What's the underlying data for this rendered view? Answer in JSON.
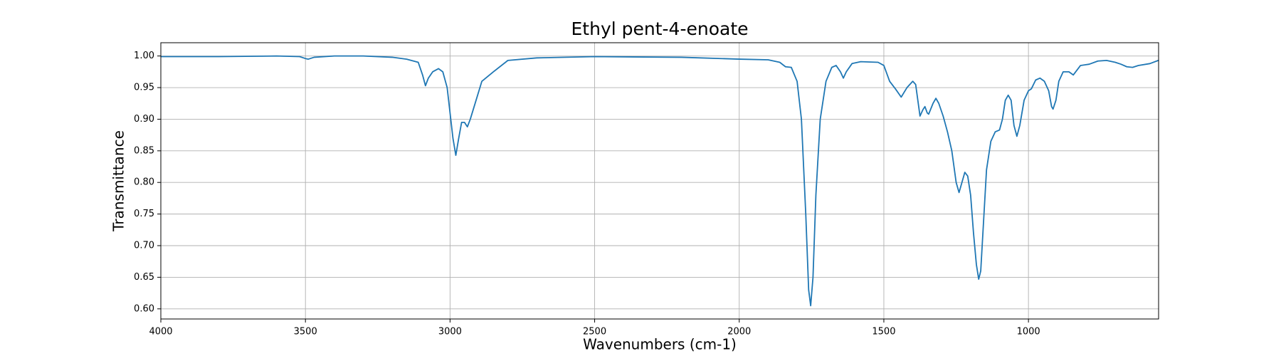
{
  "chart_data": {
    "type": "line",
    "title": "Ethyl pent-4-enoate",
    "x_label": "Wavenumbers (cm-1)",
    "y_label": "Transmittance",
    "color": "#1f77b4",
    "grid": true,
    "xlim": [
      4000,
      550
    ],
    "ylim": [
      0.584,
      1.021
    ],
    "xticks": [
      4000,
      3500,
      3000,
      2500,
      2000,
      1500,
      1000
    ],
    "yticks": [
      {
        "value": 0.6,
        "label": "0.60"
      },
      0.65,
      {
        "value": 0.7,
        "label": "0.70"
      },
      0.75,
      {
        "value": 0.8,
        "label": "0.80"
      },
      0.85,
      {
        "value": 0.9,
        "label": "0.90"
      },
      0.95,
      {
        "value": 1,
        "label": "1.00"
      }
    ],
    "x": [
      4000,
      3800,
      3600,
      3520,
      3500,
      3490,
      3470,
      3400,
      3300,
      3200,
      3150,
      3110,
      3095,
      3085,
      3075,
      3060,
      3040,
      3025,
      3010,
      3000,
      2990,
      2980,
      2970,
      2960,
      2950,
      2940,
      2930,
      2910,
      2890,
      2850,
      2800,
      2700,
      2500,
      2200,
      2000,
      1900,
      1860,
      1840,
      1820,
      1800,
      1785,
      1770,
      1760,
      1753,
      1745,
      1735,
      1720,
      1700,
      1680,
      1665,
      1650,
      1640,
      1630,
      1610,
      1580,
      1520,
      1500,
      1480,
      1460,
      1440,
      1420,
      1400,
      1390,
      1375,
      1365,
      1358,
      1350,
      1345,
      1330,
      1320,
      1310,
      1295,
      1280,
      1265,
      1250,
      1240,
      1230,
      1220,
      1210,
      1200,
      1190,
      1180,
      1172,
      1165,
      1155,
      1145,
      1130,
      1115,
      1100,
      1090,
      1080,
      1070,
      1060,
      1050,
      1040,
      1030,
      1015,
      1000,
      990,
      975,
      960,
      945,
      930,
      920,
      915,
      905,
      895,
      880,
      860,
      845,
      820,
      790,
      760,
      730,
      700,
      680,
      660,
      640,
      620,
      580,
      551
    ],
    "values": [
      0.999,
      0.999,
      1.0,
      0.999,
      0.996,
      0.995,
      0.998,
      1.0,
      1.0,
      0.998,
      0.995,
      0.99,
      0.97,
      0.953,
      0.965,
      0.975,
      0.98,
      0.975,
      0.95,
      0.91,
      0.87,
      0.843,
      0.87,
      0.895,
      0.895,
      0.888,
      0.9,
      0.93,
      0.96,
      0.975,
      0.993,
      0.997,
      0.999,
      0.998,
      0.995,
      0.994,
      0.99,
      0.983,
      0.982,
      0.96,
      0.9,
      0.75,
      0.63,
      0.605,
      0.65,
      0.78,
      0.9,
      0.96,
      0.982,
      0.985,
      0.975,
      0.965,
      0.975,
      0.988,
      0.991,
      0.99,
      0.985,
      0.96,
      0.948,
      0.935,
      0.95,
      0.96,
      0.955,
      0.905,
      0.915,
      0.92,
      0.91,
      0.908,
      0.925,
      0.933,
      0.925,
      0.905,
      0.88,
      0.85,
      0.8,
      0.784,
      0.8,
      0.816,
      0.81,
      0.78,
      0.72,
      0.67,
      0.647,
      0.66,
      0.74,
      0.82,
      0.865,
      0.88,
      0.883,
      0.9,
      0.93,
      0.938,
      0.93,
      0.89,
      0.873,
      0.89,
      0.93,
      0.945,
      0.948,
      0.962,
      0.965,
      0.96,
      0.945,
      0.92,
      0.916,
      0.93,
      0.96,
      0.975,
      0.975,
      0.97,
      0.985,
      0.987,
      0.992,
      0.993,
      0.99,
      0.987,
      0.983,
      0.982,
      0.985,
      0.988,
      0.993
    ]
  }
}
